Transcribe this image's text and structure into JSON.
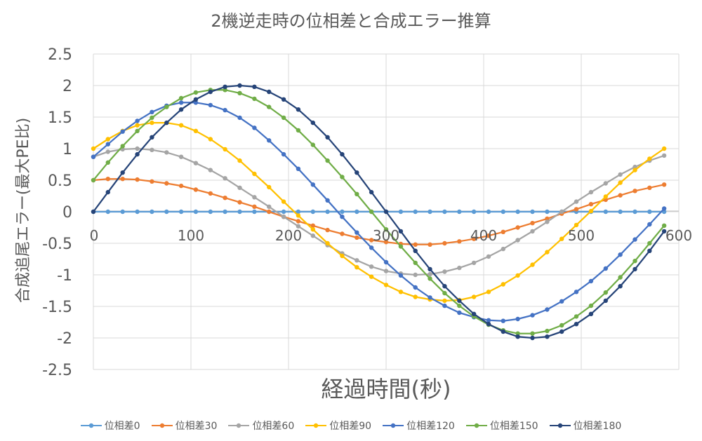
{
  "chart_data": {
    "type": "line",
    "title": "2機逆走時の位相差と合成エラー推算",
    "xlabel": "経過時間(秒)",
    "ylabel": "合成追尾エラー(最大PE比)",
    "xlim": [
      0,
      600
    ],
    "ylim": [
      -2.5,
      2.5
    ],
    "x_ticks": [
      "0",
      "100",
      "200",
      "300",
      "400",
      "500",
      "600"
    ],
    "y_ticks": [
      "2.5",
      "2",
      "1.5",
      "1",
      "0.5",
      "0",
      "-0.5",
      "-1",
      "-1.5",
      "-2",
      "-2.5"
    ],
    "grid": true,
    "legend_position": "bottom",
    "x": [
      0,
      15,
      30,
      45,
      60,
      75,
      90,
      105,
      120,
      135,
      150,
      165,
      180,
      195,
      210,
      225,
      240,
      255,
      270,
      285,
      300,
      315,
      330,
      345,
      360,
      375,
      390,
      405,
      420,
      435,
      450,
      465,
      480,
      495,
      510,
      525,
      540,
      555,
      570,
      585
    ],
    "series": [
      {
        "name": "位相差0",
        "color": "#5B9BD5",
        "values": [
          0,
          0,
          0,
          0,
          0,
          0,
          0,
          0,
          0,
          0,
          0,
          0,
          0,
          0,
          0,
          0,
          0,
          0,
          0,
          0,
          0,
          0,
          0,
          0,
          0,
          0,
          0,
          0,
          0,
          0,
          0,
          0,
          0,
          0,
          0,
          0,
          0,
          0,
          0,
          0
        ]
      },
      {
        "name": "位相差30",
        "color": "#ED7D31",
        "values": [
          0.5,
          0.52,
          0.52,
          0.51,
          0.48,
          0.45,
          0.41,
          0.35,
          0.29,
          0.22,
          0.15,
          0.08,
          0,
          -0.08,
          -0.15,
          -0.22,
          -0.29,
          -0.35,
          -0.41,
          -0.45,
          -0.48,
          -0.51,
          -0.52,
          -0.52,
          -0.5,
          -0.47,
          -0.43,
          -0.38,
          -0.32,
          -0.25,
          -0.18,
          -0.11,
          -0.03,
          0.04,
          0.12,
          0.19,
          0.26,
          0.33,
          0.38,
          0.43
        ]
      },
      {
        "name": "位相差60",
        "color": "#A5A5A5",
        "values": [
          0.87,
          0.95,
          0.99,
          1,
          0.98,
          0.94,
          0.87,
          0.77,
          0.66,
          0.53,
          0.38,
          0.23,
          0.08,
          -0.08,
          -0.23,
          -0.38,
          -0.53,
          -0.66,
          -0.77,
          -0.87,
          -0.94,
          -0.98,
          -1,
          -0.99,
          -0.95,
          -0.89,
          -0.81,
          -0.71,
          -0.59,
          -0.45,
          -0.31,
          -0.16,
          0,
          0.16,
          0.31,
          0.45,
          0.59,
          0.71,
          0.81,
          0.89
        ]
      },
      {
        "name": "位相差90",
        "color": "#FFC000",
        "values": [
          1,
          1.15,
          1.28,
          1.37,
          1.41,
          1.41,
          1.37,
          1.28,
          1.15,
          0.99,
          0.81,
          0.6,
          0.39,
          0.16,
          -0.06,
          -0.28,
          -0.5,
          -0.7,
          -0.88,
          -1.03,
          -1.16,
          -1.27,
          -1.35,
          -1.39,
          -1.41,
          -1.4,
          -1.35,
          -1.27,
          -1.15,
          -1.01,
          -0.84,
          -0.64,
          -0.43,
          -0.21,
          0.01,
          0.24,
          0.46,
          0.66,
          0.84,
          1
        ]
      },
      {
        "name": "位相差120",
        "color": "#4472C4",
        "values": [
          0.87,
          1.07,
          1.27,
          1.44,
          1.58,
          1.68,
          1.73,
          1.73,
          1.69,
          1.61,
          1.49,
          1.33,
          1.13,
          0.91,
          0.68,
          0.43,
          0.18,
          -0.08,
          -0.33,
          -0.57,
          -0.8,
          -1.01,
          -1.2,
          -1.36,
          -1.49,
          -1.6,
          -1.67,
          -1.72,
          -1.73,
          -1.7,
          -1.64,
          -1.55,
          -1.42,
          -1.27,
          -1.1,
          -0.9,
          -0.68,
          -0.44,
          -0.2,
          0.05
        ]
      },
      {
        "name": "位相差150",
        "color": "#70AD47",
        "values": [
          0.5,
          0.78,
          1.04,
          1.28,
          1.49,
          1.66,
          1.8,
          1.89,
          1.93,
          1.93,
          1.88,
          1.79,
          1.66,
          1.49,
          1.29,
          1.06,
          0.81,
          0.55,
          0.28,
          0,
          -0.28,
          -0.55,
          -0.81,
          -1.06,
          -1.29,
          -1.49,
          -1.66,
          -1.79,
          -1.88,
          -1.93,
          -1.93,
          -1.89,
          -1.8,
          -1.66,
          -1.49,
          -1.28,
          -1.04,
          -0.78,
          -0.5,
          -0.22
        ]
      },
      {
        "name": "位相差180",
        "color": "#264478",
        "values": [
          0,
          0.31,
          0.62,
          0.91,
          1.18,
          1.41,
          1.62,
          1.78,
          1.9,
          1.98,
          2,
          1.98,
          1.9,
          1.78,
          1.62,
          1.41,
          1.18,
          0.91,
          0.62,
          0.31,
          0,
          -0.31,
          -0.62,
          -0.91,
          -1.18,
          -1.41,
          -1.62,
          -1.78,
          -1.9,
          -1.98,
          -2,
          -1.98,
          -1.9,
          -1.78,
          -1.62,
          -1.41,
          -1.18,
          -0.91,
          -0.62,
          -0.31
        ]
      }
    ]
  }
}
